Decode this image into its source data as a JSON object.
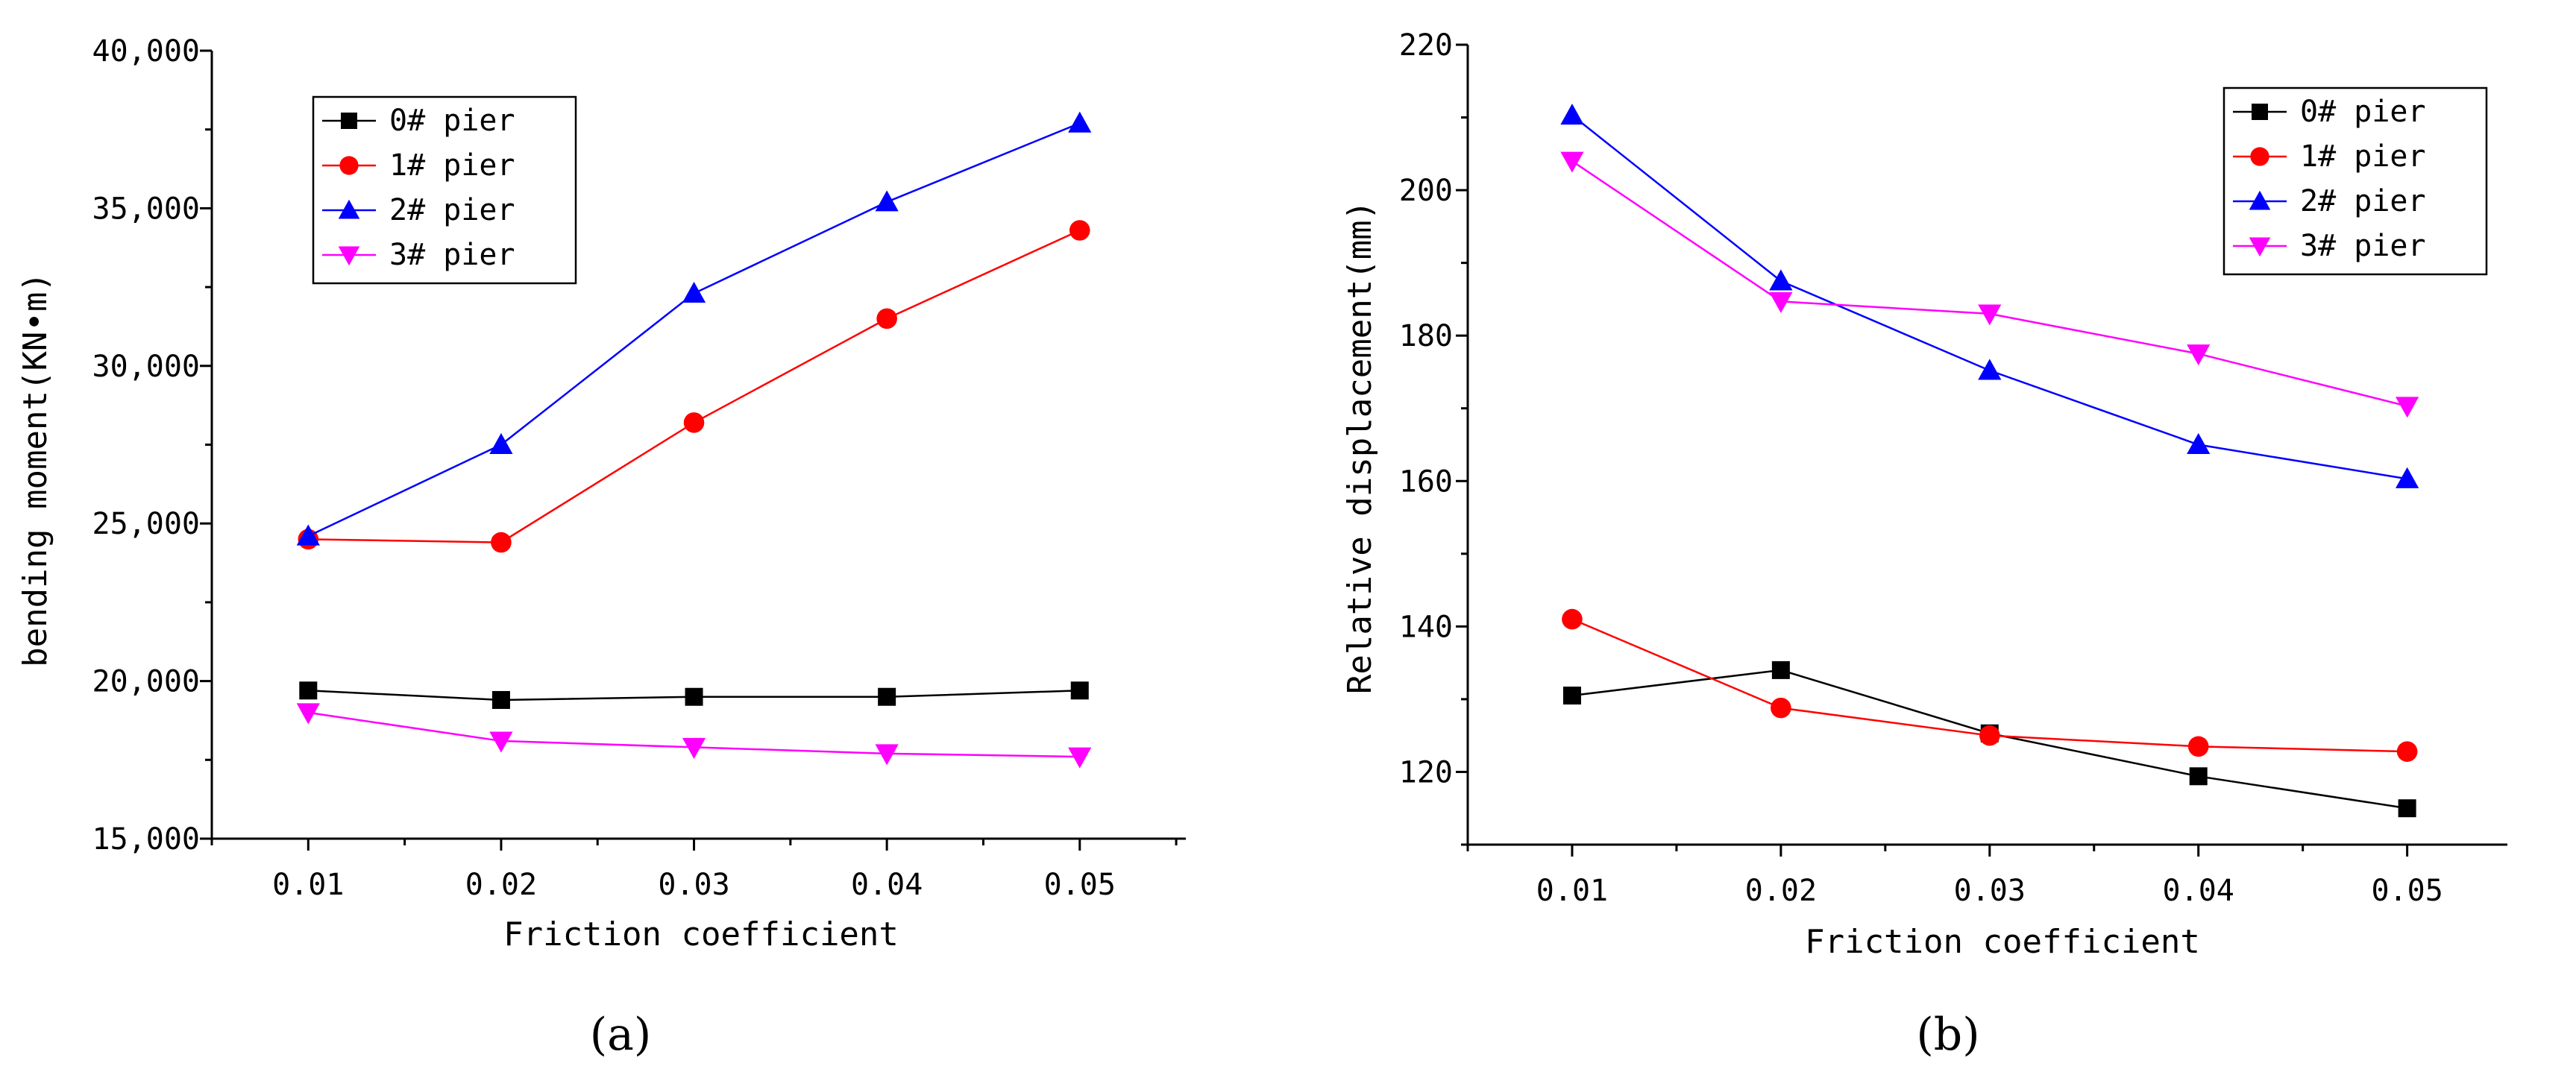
{
  "figure": {
    "panel_labels": [
      "(a)",
      "(b)"
    ]
  },
  "chart_data": [
    {
      "type": "line",
      "panel": "(a)",
      "title": "",
      "xlabel": "Friction coefficient",
      "ylabel": "bending moment(KN•m)",
      "categories": [
        "0.01",
        "0.02",
        "0.03",
        "0.04",
        "0.05"
      ],
      "x": [
        0.01,
        0.02,
        0.03,
        0.04,
        0.05
      ],
      "xlim": [
        0.005,
        0.0555
      ],
      "ylim": [
        15000,
        40000
      ],
      "yticks": [
        15000,
        20000,
        25000,
        30000,
        35000,
        40000
      ],
      "ytick_labels": [
        "15,000",
        "20,000",
        "25,000",
        "30,000",
        "35,000",
        "40,000"
      ],
      "xtick_labels": [
        "0.01",
        "0.02",
        "0.03",
        "0.04",
        "0.05"
      ],
      "legend_position": "top-left",
      "series": [
        {
          "name": "0# pier",
          "color": "#000000",
          "marker": "square",
          "values": [
            19700,
            19400,
            19500,
            19500,
            19700
          ]
        },
        {
          "name": "1# pier",
          "color": "#ff0000",
          "marker": "circle",
          "values": [
            24500,
            24400,
            28200,
            31500,
            34300
          ]
        },
        {
          "name": "2# pier",
          "color": "#0000ff",
          "marker": "triangle-up",
          "values": [
            24600,
            27500,
            32300,
            35200,
            37700
          ]
        },
        {
          "name": "3# pier",
          "color": "#ff00ff",
          "marker": "triangle-down",
          "values": [
            19000,
            18100,
            17900,
            17700,
            17600
          ]
        }
      ]
    },
    {
      "type": "line",
      "panel": "(b)",
      "title": "",
      "xlabel": "Friction coefficient",
      "ylabel": "Relative displacement(mm)",
      "categories": [
        "0.01",
        "0.02",
        "0.03",
        "0.04",
        "0.05"
      ],
      "x": [
        0.01,
        0.02,
        0.03,
        0.04,
        0.05
      ],
      "xlim": [
        0.005,
        0.0548
      ],
      "ylim": [
        110,
        220
      ],
      "yticks": [
        120,
        140,
        160,
        180,
        200,
        220
      ],
      "ytick_labels": [
        "120",
        "140",
        "160",
        "180",
        "200",
        "220"
      ],
      "xtick_labels": [
        "0.01",
        "0.02",
        "0.03",
        "0.04",
        "0.05"
      ],
      "legend_position": "top-right",
      "series": [
        {
          "name": "0# pier",
          "color": "#000000",
          "marker": "square",
          "values": [
            130.5,
            134,
            125.3,
            119.4,
            115
          ]
        },
        {
          "name": "1# pier",
          "color": "#ff0000",
          "marker": "circle",
          "values": [
            141,
            128.8,
            125,
            123.5,
            122.8
          ]
        },
        {
          "name": "2# pier",
          "color": "#0000ff",
          "marker": "triangle-up",
          "values": [
            210.3,
            187.5,
            175.2,
            165,
            160.3
          ]
        },
        {
          "name": "3# pier",
          "color": "#ff00ff",
          "marker": "triangle-down",
          "values": [
            204,
            184.7,
            183,
            177.5,
            170.3
          ]
        }
      ]
    }
  ]
}
